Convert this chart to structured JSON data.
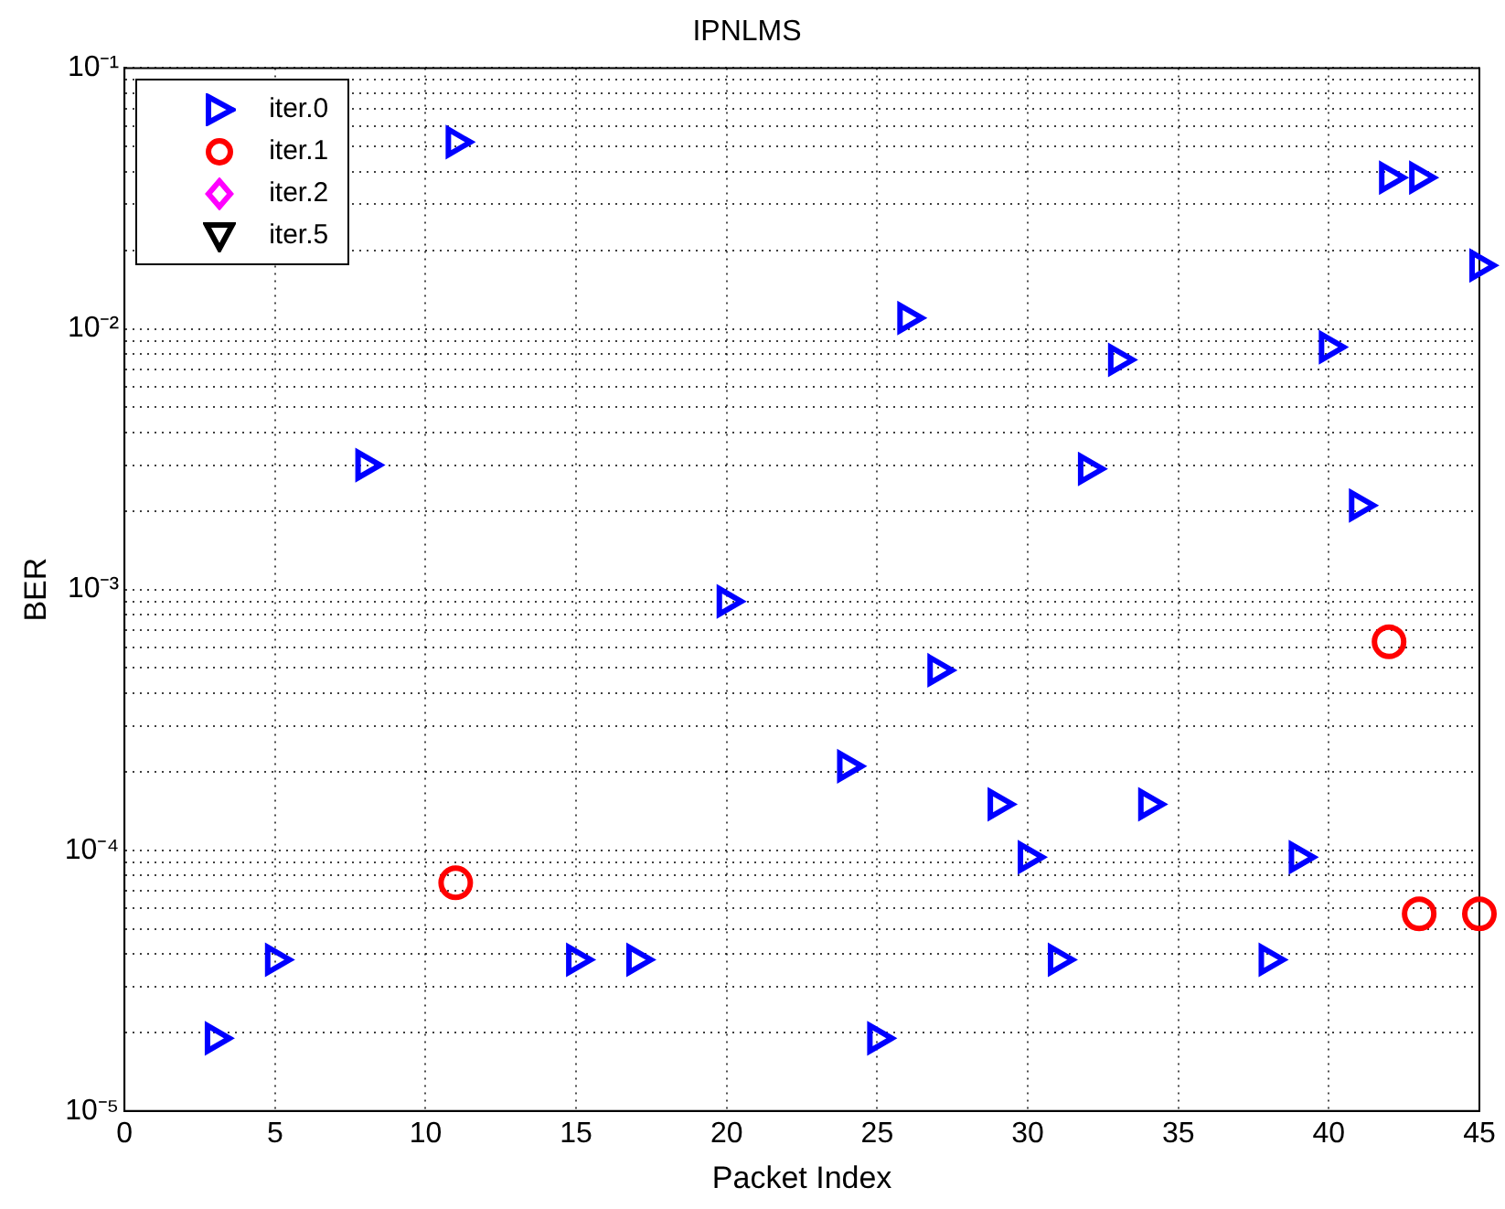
{
  "chart_data": {
    "type": "scatter",
    "title": "IPNLMS",
    "xlabel": "Packet Index",
    "ylabel": "BER",
    "xlim": [
      0,
      45
    ],
    "xticks": [
      0,
      5,
      10,
      15,
      20,
      25,
      30,
      35,
      40,
      45
    ],
    "ylim": [
      1e-05,
      0.1
    ],
    "yticks": [
      {
        "value": 1e-05,
        "label": "10⁻⁵"
      },
      {
        "value": 2e-05,
        "label": null
      },
      {
        "value": 3e-05,
        "label": null
      },
      {
        "value": 4e-05,
        "label": null
      },
      {
        "value": 5e-05,
        "label": null
      },
      {
        "value": 6e-05,
        "label": null
      },
      {
        "value": 7e-05,
        "label": null
      },
      {
        "value": 8e-05,
        "label": null
      },
      {
        "value": 9e-05,
        "label": null
      },
      {
        "value": 0.0001,
        "label": "10⁻⁴"
      },
      {
        "value": 0.0002,
        "label": null
      },
      {
        "value": 0.0003,
        "label": null
      },
      {
        "value": 0.0004,
        "label": null
      },
      {
        "value": 0.0005,
        "label": null
      },
      {
        "value": 0.0006,
        "label": null
      },
      {
        "value": 0.0007,
        "label": null
      },
      {
        "value": 0.0008,
        "label": null
      },
      {
        "value": 0.0009,
        "label": null
      },
      {
        "value": 0.001,
        "label": "10⁻³"
      },
      {
        "value": 0.002,
        "label": null
      },
      {
        "value": 0.003,
        "label": null
      },
      {
        "value": 0.004,
        "label": null
      },
      {
        "value": 0.005,
        "label": null
      },
      {
        "value": 0.006,
        "label": null
      },
      {
        "value": 0.007,
        "label": null
      },
      {
        "value": 0.008,
        "label": null
      },
      {
        "value": 0.009,
        "label": null
      },
      {
        "value": 0.01,
        "label": "10⁻²"
      },
      {
        "value": 0.02,
        "label": null
      },
      {
        "value": 0.03,
        "label": null
      },
      {
        "value": 0.04,
        "label": null
      },
      {
        "value": 0.05,
        "label": null
      },
      {
        "value": 0.06,
        "label": null
      },
      {
        "value": 0.07,
        "label": null
      },
      {
        "value": 0.08,
        "label": null
      },
      {
        "value": 0.09,
        "label": null
      },
      {
        "value": 0.1,
        "label": "10⁻¹"
      }
    ],
    "log": "y",
    "grid": true,
    "legend": "top left",
    "series": [
      {
        "name": "iter.0",
        "color": "#0000ff",
        "marker": "triangle-right",
        "x": [
          3,
          5,
          8,
          11,
          15,
          17,
          20,
          24,
          25,
          26,
          27,
          29,
          30,
          31,
          32,
          33,
          34,
          38,
          39,
          40,
          41,
          42,
          43,
          45
        ],
        "values": [
          1.9e-05,
          3.8e-05,
          0.003,
          0.052,
          3.8e-05,
          3.8e-05,
          0.0009,
          0.00021,
          1.9e-05,
          0.011,
          0.00049,
          0.00015,
          9.4e-05,
          3.8e-05,
          0.0029,
          0.0076,
          0.00015,
          3.8e-05,
          9.4e-05,
          0.0085,
          0.0021,
          0.038,
          0.038,
          0.0175
        ]
      },
      {
        "name": "iter.1",
        "color": "#ff0000",
        "marker": "circle",
        "x": [
          11,
          42,
          43,
          45
        ],
        "values": [
          7.5e-05,
          0.00063,
          5.7e-05,
          5.7e-05
        ]
      },
      {
        "name": "iter.2",
        "color": "#ff00ff",
        "marker": "diamond"
      },
      {
        "name": "iter.5",
        "color": "#000000",
        "marker": "triangle-down"
      }
    ]
  }
}
